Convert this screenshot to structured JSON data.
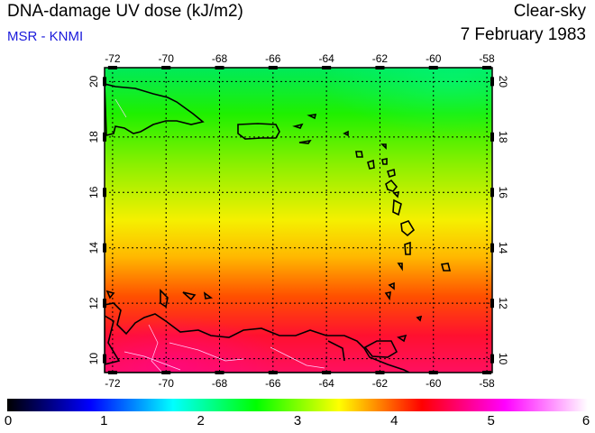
{
  "header": {
    "title": "DNA-damage UV dose (kJ/m2)",
    "credit": "MSR - KNMI",
    "condition": "Clear-sky",
    "date": "7 February 1983"
  },
  "map": {
    "lon_range": [
      -72.3,
      -57.8
    ],
    "lat_range": [
      9.5,
      20.5
    ],
    "lon_ticks": [
      "-72",
      "-70",
      "-68",
      "-66",
      "-64",
      "-62",
      "-60",
      "-58"
    ],
    "lat_ticks": [
      "10",
      "12",
      "14",
      "16",
      "18",
      "20"
    ],
    "gridlines": "dotted"
  },
  "colorbar": {
    "min": 0,
    "max": 6,
    "tick_labels": [
      "0",
      "1",
      "2",
      "3",
      "4",
      "5",
      "6"
    ],
    "colors": [
      "#000000",
      "#0000ff",
      "#00ffff",
      "#00ff00",
      "#ffff00",
      "#ff0000",
      "#ff00ff",
      "#ffffff"
    ]
  }
}
